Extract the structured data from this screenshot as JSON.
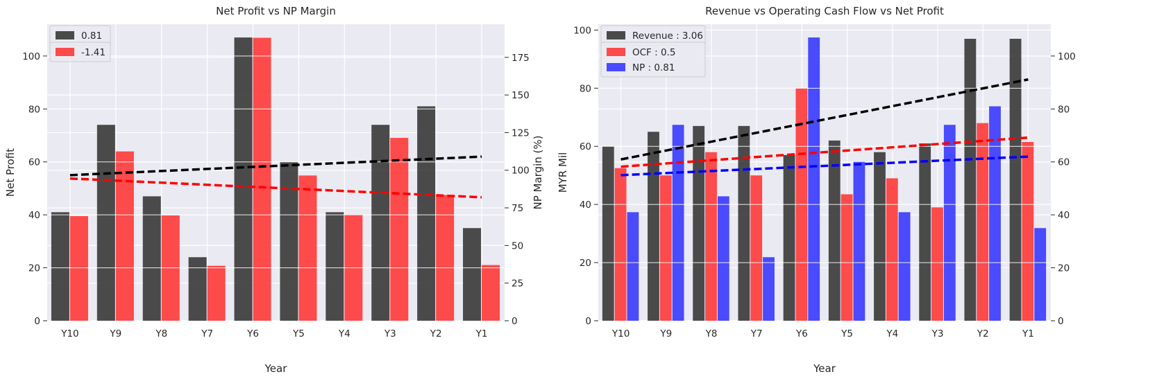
{
  "chart_data": [
    {
      "type": "bar",
      "title": "Net Profit vs NP Margin",
      "xlabel": "Year",
      "ylabel": "Net Profit",
      "ylabel_right": "NP Margin (%)",
      "categories": [
        "Y10",
        "Y9",
        "Y8",
        "Y7",
        "Y6",
        "Y5",
        "Y4",
        "Y3",
        "Y2",
        "Y1"
      ],
      "ylim": [
        0,
        112
      ],
      "ylim_right": [
        0,
        197
      ],
      "yticks": [
        0,
        20,
        40,
        60,
        80,
        100
      ],
      "yticks_right": [
        0,
        25,
        50,
        75,
        100,
        125,
        150,
        175
      ],
      "series": [
        {
          "name": "0.81",
          "axis": "left",
          "color": "#333333",
          "values": [
            41,
            74,
            47,
            24,
            107,
            60,
            41,
            74,
            81,
            35
          ]
        },
        {
          "name": "-1.41",
          "axis": "right",
          "color": "#ff3333",
          "values": [
            69.5,
            112.5,
            70,
            36.5,
            188,
            96.5,
            70.5,
            121.5,
            83.5,
            37
          ]
        }
      ],
      "trendlines": [
        {
          "color": "#000000",
          "axis": "left",
          "start": 55,
          "end": 62
        },
        {
          "color": "#ff0000",
          "axis": "right",
          "start": 94.5,
          "end": 82
        }
      ],
      "legend_position": "upper-left",
      "grid": true
    },
    {
      "type": "bar",
      "title": "Revenue vs Operating Cash Flow vs Net Profit",
      "xlabel": "Year",
      "ylabel": "MYR Mil",
      "categories": [
        "Y10",
        "Y9",
        "Y8",
        "Y7",
        "Y6",
        "Y5",
        "Y4",
        "Y3",
        "Y2",
        "Y1"
      ],
      "ylim": [
        0,
        102
      ],
      "ylim_right": [
        0,
        112
      ],
      "yticks": [
        0,
        20,
        40,
        60,
        80,
        100
      ],
      "yticks_right": [
        0,
        20,
        40,
        60,
        80,
        100
      ],
      "series": [
        {
          "name": "Revenue : 3.06",
          "axis": "left",
          "color": "#333333",
          "values": [
            60,
            65,
            67,
            67,
            57,
            62,
            58,
            61,
            97,
            97
          ]
        },
        {
          "name": "OCF : 0.5",
          "axis": "left",
          "color": "#ff3333",
          "values": [
            52.5,
            50,
            58,
            50,
            80,
            43.5,
            49,
            39,
            68,
            61.5
          ]
        },
        {
          "name": "NP : 0.81",
          "axis": "right",
          "color": "#3333ff",
          "values": [
            41,
            74,
            47,
            24,
            107,
            60,
            41,
            74,
            81,
            35
          ]
        }
      ],
      "trendlines": [
        {
          "color": "#000000",
          "axis": "left",
          "start": 55.5,
          "end": 83
        },
        {
          "color": "#ff0000",
          "axis": "left",
          "start": 53,
          "end": 63
        },
        {
          "color": "#0000ff",
          "axis": "right",
          "start": 55,
          "end": 62
        }
      ],
      "legend_position": "upper-left",
      "grid": true
    }
  ]
}
